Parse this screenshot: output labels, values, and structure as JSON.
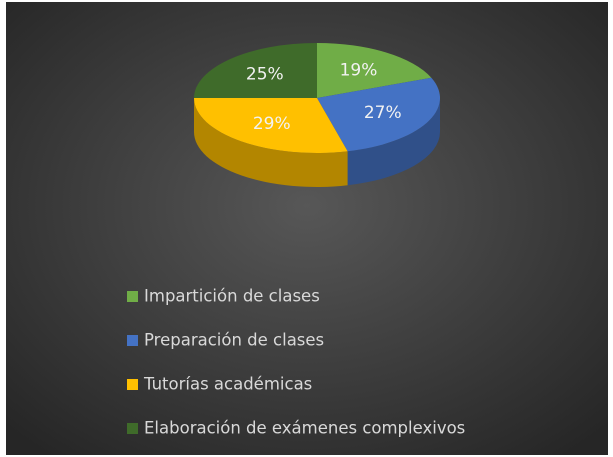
{
  "chart_data": {
    "type": "pie",
    "categories": [
      "Impartición de clases",
      "Preparación de clases",
      "Tutorías académicas",
      "Elaboración de exámenes complexivos"
    ],
    "values": [
      19,
      27,
      29,
      25
    ],
    "value_labels": [
      "19%",
      "27%",
      "29%",
      "25%"
    ],
    "colors": [
      "#70ad47",
      "#4472c4",
      "#ffc000",
      "#3f6b2a"
    ]
  }
}
